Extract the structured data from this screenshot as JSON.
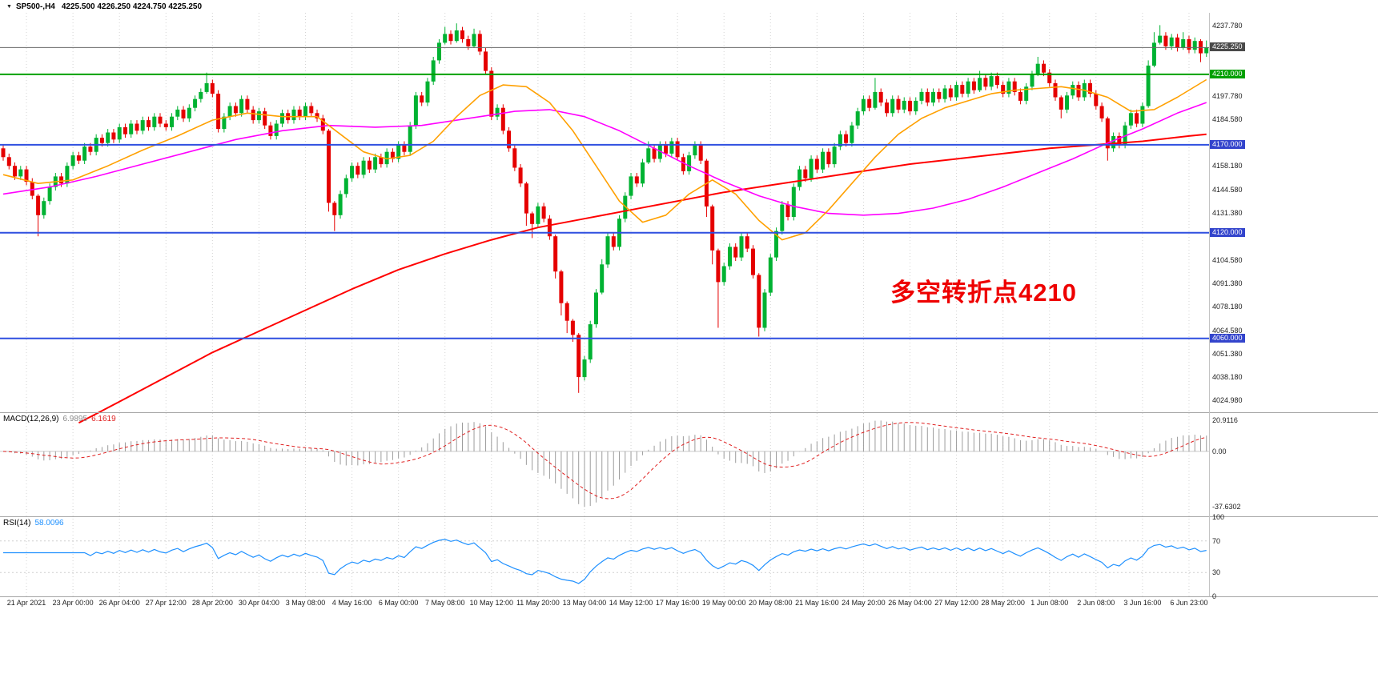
{
  "top_bar": {
    "symbol_timeframe": "SP500-,H4",
    "ohlc_readout": "4225.500 4226.250 4224.750 4225.250"
  },
  "annotation": {
    "text": "多空转折点4210",
    "color": "#ee0000"
  },
  "colors": {
    "up": "#00b232",
    "down": "#e50000",
    "grid": "#d4d4d4",
    "hist": "#9c9c9c",
    "macd_signal": "#e02020",
    "rsi": "#1E90FF",
    "blue_level": "#2f4fe0",
    "green_level": "#00a000",
    "current_price": "#6a6a6a"
  },
  "main_chart": {
    "price_axis": {
      "labels": [
        {
          "v": 4237.78,
          "t": "4237.780"
        },
        {
          "v": 4197.78,
          "t": "4197.780"
        },
        {
          "v": 4184.58,
          "t": "4184.580"
        },
        {
          "v": 4158.18,
          "t": "4158.180"
        },
        {
          "v": 4144.58,
          "t": "4144.580"
        },
        {
          "v": 4131.38,
          "t": "4131.380"
        },
        {
          "v": 4104.58,
          "t": "4104.580"
        },
        {
          "v": 4091.38,
          "t": "4091.380"
        },
        {
          "v": 4078.18,
          "t": "4078.180"
        },
        {
          "v": 4064.58,
          "t": "4064.580"
        },
        {
          "v": 4051.38,
          "t": "4051.380"
        },
        {
          "v": 4038.18,
          "t": "4038.180"
        },
        {
          "v": 4024.98,
          "t": "4024.980"
        }
      ],
      "badges": [
        {
          "v": 4225.25,
          "t": "4225.250",
          "bg": "#4a4a4a"
        },
        {
          "v": 4210.0,
          "t": "4210.000",
          "bg": "#00a000"
        },
        {
          "v": 4170.0,
          "t": "4170.000",
          "bg": "#3344cc"
        },
        {
          "v": 4120.0,
          "t": "4120.000",
          "bg": "#3344cc"
        },
        {
          "v": 4060.0,
          "t": "4060.000",
          "bg": "#3344cc"
        }
      ]
    },
    "hlines": [
      {
        "value": 4225.25,
        "color": "#6a6a6a",
        "width": 1
      },
      {
        "value": 4210.0,
        "color": "#00a000",
        "width": 2
      },
      {
        "value": 4170.0,
        "color": "#2f4fe0",
        "width": 2
      },
      {
        "value": 4120.0,
        "color": "#2f4fe0",
        "width": 2
      },
      {
        "value": 4060.0,
        "color": "#2f4fe0",
        "width": 2
      }
    ]
  },
  "chart_data": {
    "type": "candlestick",
    "symbol": "SP500-",
    "timeframe": "H4",
    "title": "SP500-,H4 4225.500 4226.250 4224.750 4225.250",
    "price_min": 4018,
    "price_max": 4245,
    "label_offset": 4,
    "label_every": 8,
    "time_labels": [
      "21 Apr 2021",
      "23 Apr 00:00",
      "26 Apr 04:00",
      "27 Apr 12:00",
      "28 Apr 20:00",
      "30 Apr 04:00",
      "3 May 08:00",
      "4 May 16:00",
      "6 May 00:00",
      "7 May 08:00",
      "10 May 12:00",
      "11 May 20:00",
      "13 May 04:00",
      "14 May 12:00",
      "17 May 16:00",
      "19 May 00:00",
      "20 May 08:00",
      "21 May 16:00",
      "24 May 20:00",
      "26 May 04:00",
      "27 May 12:00",
      "28 May 20:00",
      "1 Jun 08:00",
      "2 Jun 08:00",
      "3 Jun 16:00",
      "6 Jun 23:00"
    ],
    "first_open": 4168,
    "closes": [
      4163,
      4158,
      4152,
      4156,
      4149,
      4141,
      4130,
      4138,
      4146,
      4152,
      4148,
      4158,
      4164,
      4161,
      4169,
      4166,
      4174,
      4171,
      4177,
      4173,
      4180,
      4176,
      4182,
      4178,
      4184,
      4180,
      4186,
      4182,
      4180,
      4186,
      4190,
      4185,
      4191,
      4196,
      4200,
      4205,
      4199,
      4179,
      4186,
      4192,
      4188,
      4196,
      4190,
      4184,
      4189,
      4181,
      4175,
      4182,
      4188,
      4184,
      4190,
      4186,
      4192,
      4188,
      4185,
      4178,
      4137,
      4130,
      4142,
      4151,
      4158,
      4153,
      4161,
      4156,
      4163,
      4159,
      4166,
      4162,
      4170,
      4166,
      4181,
      4198,
      4194,
      4206,
      4218,
      4228,
      4233,
      4229,
      4235,
      4230,
      4226,
      4233,
      4223,
      4212,
      4186,
      4191,
      4178,
      4168,
      4157,
      4148,
      4131,
      4125,
      4135,
      4128,
      4118,
      4098,
      4080,
      4070,
      4062,
      4038,
      4048,
      4068,
      4086,
      4102,
      4118,
      4112,
      4128,
      4141,
      4152,
      4148,
      4160,
      4168,
      4162,
      4170,
      4165,
      4172,
      4163,
      4155,
      4164,
      4170,
      4161,
      4135,
      4110,
      4092,
      4101,
      4112,
      4106,
      4118,
      4111,
      4096,
      4066,
      4086,
      4106,
      4121,
      4136,
      4129,
      4146,
      4156,
      4151,
      4162,
      4156,
      4166,
      4159,
      4169,
      4176,
      4171,
      4181,
      4189,
      4196,
      4191,
      4200,
      4194,
      4188,
      4196,
      4190,
      4195,
      4189,
      4195,
      4200,
      4194,
      4200,
      4196,
      4202,
      4197,
      4204,
      4199,
      4206,
      4201,
      4208,
      4203,
      4209,
      4204,
      4199,
      4206,
      4200,
      4195,
      4203,
      4210,
      4216,
      4211,
      4205,
      4197,
      4190,
      4198,
      4204,
      4197,
      4205,
      4199,
      4192,
      4185,
      4168,
      4175,
      4170,
      4181,
      4188,
      4182,
      4192,
      4215,
      4228,
      4232,
      4226,
      4231,
      4225,
      4230,
      4224,
      4229,
      4222,
      4225.25
    ],
    "wick_default": 2,
    "wick_overrides": {
      "6": [
        1,
        12
      ],
      "35": [
        6,
        1
      ],
      "56": [
        1,
        5
      ],
      "57": [
        1,
        9
      ],
      "76": [
        4,
        1
      ],
      "78": [
        4,
        1
      ],
      "81": [
        3,
        1
      ],
      "90": [
        1,
        7
      ],
      "91": [
        1,
        8
      ],
      "95": [
        1,
        4
      ],
      "96": [
        1,
        7
      ],
      "97": [
        1,
        7
      ],
      "98": [
        1,
        4
      ],
      "99": [
        1,
        9
      ],
      "103": [
        3,
        1
      ],
      "111": [
        4,
        1
      ],
      "121": [
        1,
        6
      ],
      "122": [
        1,
        8
      ],
      "123": [
        1,
        26
      ],
      "130": [
        1,
        5
      ],
      "150": [
        8,
        1
      ],
      "168": [
        4,
        1
      ],
      "178": [
        4,
        1
      ],
      "182": [
        1,
        5
      ],
      "190": [
        1,
        7
      ],
      "197": [
        3,
        1
      ],
      "198": [
        6,
        1
      ],
      "199": [
        6,
        1
      ],
      "203": [
        4,
        1
      ],
      "206": [
        1,
        5
      ],
      "207": [
        4,
        2
      ]
    },
    "ma_lines": [
      {
        "name": "ma-slow-line",
        "color": "#ff0000",
        "width": 2,
        "points": [
          [
            13,
            4012
          ],
          [
            20,
            4024
          ],
          [
            28,
            4038
          ],
          [
            36,
            4052
          ],
          [
            44,
            4064
          ],
          [
            52,
            4076
          ],
          [
            60,
            4088
          ],
          [
            68,
            4099
          ],
          [
            76,
            4108
          ],
          [
            84,
            4116
          ],
          [
            92,
            4123
          ],
          [
            100,
            4128
          ],
          [
            108,
            4133
          ],
          [
            116,
            4138
          ],
          [
            124,
            4143
          ],
          [
            132,
            4147
          ],
          [
            140,
            4151
          ],
          [
            148,
            4155
          ],
          [
            156,
            4159
          ],
          [
            164,
            4162
          ],
          [
            172,
            4165
          ],
          [
            180,
            4168
          ],
          [
            188,
            4170
          ],
          [
            196,
            4172
          ],
          [
            204,
            4175
          ],
          [
            207,
            4176
          ]
        ]
      },
      {
        "name": "ma-medium-line",
        "color": "#ff00ff",
        "width": 1.6,
        "points": [
          [
            0,
            4142
          ],
          [
            8,
            4146
          ],
          [
            16,
            4152
          ],
          [
            24,
            4159
          ],
          [
            32,
            4166
          ],
          [
            40,
            4173
          ],
          [
            48,
            4178
          ],
          [
            56,
            4181
          ],
          [
            64,
            4180
          ],
          [
            72,
            4181
          ],
          [
            80,
            4185
          ],
          [
            88,
            4189
          ],
          [
            94,
            4190
          ],
          [
            100,
            4186
          ],
          [
            106,
            4178
          ],
          [
            112,
            4168
          ],
          [
            118,
            4158
          ],
          [
            124,
            4149
          ],
          [
            130,
            4141
          ],
          [
            136,
            4135
          ],
          [
            142,
            4131
          ],
          [
            148,
            4130
          ],
          [
            154,
            4131
          ],
          [
            160,
            4134
          ],
          [
            166,
            4139
          ],
          [
            172,
            4146
          ],
          [
            178,
            4154
          ],
          [
            184,
            4162
          ],
          [
            190,
            4171
          ],
          [
            196,
            4179
          ],
          [
            202,
            4188
          ],
          [
            207,
            4194
          ]
        ]
      },
      {
        "name": "ma-fast-line",
        "color": "#ffa000",
        "width": 1.6,
        "points": [
          [
            0,
            4153
          ],
          [
            6,
            4148
          ],
          [
            12,
            4150
          ],
          [
            18,
            4158
          ],
          [
            24,
            4167
          ],
          [
            30,
            4175
          ],
          [
            36,
            4184
          ],
          [
            42,
            4188
          ],
          [
            48,
            4186
          ],
          [
            54,
            4186
          ],
          [
            58,
            4176
          ],
          [
            62,
            4166
          ],
          [
            66,
            4162
          ],
          [
            70,
            4164
          ],
          [
            74,
            4172
          ],
          [
            78,
            4186
          ],
          [
            82,
            4198
          ],
          [
            86,
            4204
          ],
          [
            90,
            4203
          ],
          [
            94,
            4194
          ],
          [
            98,
            4178
          ],
          [
            102,
            4158
          ],
          [
            106,
            4138
          ],
          [
            110,
            4126
          ],
          [
            114,
            4130
          ],
          [
            118,
            4142
          ],
          [
            122,
            4150
          ],
          [
            126,
            4142
          ],
          [
            130,
            4127
          ],
          [
            134,
            4116
          ],
          [
            138,
            4120
          ],
          [
            142,
            4133
          ],
          [
            146,
            4148
          ],
          [
            150,
            4163
          ],
          [
            154,
            4176
          ],
          [
            158,
            4185
          ],
          [
            162,
            4191
          ],
          [
            166,
            4195
          ],
          [
            170,
            4199
          ],
          [
            174,
            4201
          ],
          [
            178,
            4202
          ],
          [
            182,
            4203
          ],
          [
            186,
            4201
          ],
          [
            190,
            4197
          ],
          [
            194,
            4189
          ],
          [
            198,
            4190
          ],
          [
            202,
            4197
          ],
          [
            207,
            4207
          ]
        ]
      }
    ],
    "macd": {
      "label": "MACD(12,26,9)",
      "value_main": "6.9895",
      "value_signal": "6.1619",
      "fast": 12,
      "slow": 26,
      "signal": 9,
      "axis": [
        {
          "v": 20.9116,
          "t": "20.9116"
        },
        {
          "v": 0,
          "t": "0.00"
        },
        {
          "v": -37.6302,
          "t": "-37.6302"
        }
      ],
      "axis_max_value": 20.9116,
      "axis_min_value": -37.6302
    },
    "rsi": {
      "label": "RSI(14)",
      "value": "58.0096",
      "period": 14,
      "levels": [
        70,
        30
      ],
      "axis": [
        {
          "v": 100,
          "t": "100"
        },
        {
          "v": 70,
          "t": "70"
        },
        {
          "v": 30,
          "t": "30"
        },
        {
          "v": 0,
          "t": "0"
        }
      ]
    }
  }
}
